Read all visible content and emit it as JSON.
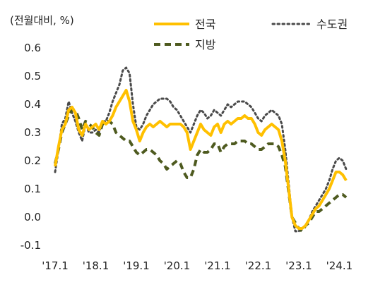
{
  "chart_data": {
    "type": "line",
    "unit_label": "(전월대비, %)",
    "ylim": [
      -0.1,
      0.6
    ],
    "y_ticks": [
      "0.6",
      "0.5",
      "0.4",
      "0.3",
      "0.2",
      "0.1",
      "0.0",
      "-0.1"
    ],
    "x_range": [
      "2017-01",
      "2024-03"
    ],
    "x_ticks": [
      {
        "label": "'17.1",
        "month": "2017-01"
      },
      {
        "label": "'18.1",
        "month": "2018-01"
      },
      {
        "label": "'19.1",
        "month": "2019-01"
      },
      {
        "label": "'20.1",
        "month": "2020-01"
      },
      {
        "label": "'21.1",
        "month": "2021-01"
      },
      {
        "label": "'22.1",
        "month": "2022-01"
      },
      {
        "label": "'23.1",
        "month": "2023-01"
      },
      {
        "label": "'24.1",
        "month": "2024-01"
      }
    ],
    "grid": false,
    "legend_position": "top-right",
    "series": [
      {
        "name": "전국",
        "color": "#FFC000",
        "style": "solid",
        "points": [
          [
            "2017-01",
            0.18
          ],
          [
            "2017-02",
            0.25
          ],
          [
            "2017-03",
            0.31
          ],
          [
            "2017-04",
            0.33
          ],
          [
            "2017-05",
            0.38
          ],
          [
            "2017-06",
            0.39
          ],
          [
            "2017-07",
            0.37
          ],
          [
            "2017-08",
            0.31
          ],
          [
            "2017-09",
            0.29
          ],
          [
            "2017-10",
            0.33
          ],
          [
            "2017-11",
            0.31
          ],
          [
            "2017-12",
            0.32
          ],
          [
            "2018-01",
            0.33
          ],
          [
            "2018-02",
            0.31
          ],
          [
            "2018-03",
            0.34
          ],
          [
            "2018-04",
            0.33
          ],
          [
            "2018-05",
            0.34
          ],
          [
            "2018-06",
            0.36
          ],
          [
            "2018-07",
            0.39
          ],
          [
            "2018-08",
            0.41
          ],
          [
            "2018-09",
            0.43
          ],
          [
            "2018-10",
            0.45
          ],
          [
            "2018-11",
            0.41
          ],
          [
            "2018-12",
            0.34
          ],
          [
            "2019-01",
            0.31
          ],
          [
            "2019-02",
            0.27
          ],
          [
            "2019-03",
            0.3
          ],
          [
            "2019-04",
            0.32
          ],
          [
            "2019-05",
            0.33
          ],
          [
            "2019-06",
            0.32
          ],
          [
            "2019-07",
            0.33
          ],
          [
            "2019-08",
            0.34
          ],
          [
            "2019-09",
            0.33
          ],
          [
            "2019-10",
            0.32
          ],
          [
            "2019-11",
            0.33
          ],
          [
            "2019-12",
            0.33
          ],
          [
            "2020-01",
            0.33
          ],
          [
            "2020-02",
            0.33
          ],
          [
            "2020-03",
            0.32
          ],
          [
            "2020-04",
            0.3
          ],
          [
            "2020-05",
            0.24
          ],
          [
            "2020-06",
            0.27
          ],
          [
            "2020-07",
            0.3
          ],
          [
            "2020-08",
            0.33
          ],
          [
            "2020-09",
            0.31
          ],
          [
            "2020-10",
            0.3
          ],
          [
            "2020-11",
            0.29
          ],
          [
            "2020-12",
            0.32
          ],
          [
            "2021-01",
            0.33
          ],
          [
            "2021-02",
            0.3
          ],
          [
            "2021-03",
            0.33
          ],
          [
            "2021-04",
            0.34
          ],
          [
            "2021-05",
            0.33
          ],
          [
            "2021-06",
            0.34
          ],
          [
            "2021-07",
            0.35
          ],
          [
            "2021-08",
            0.35
          ],
          [
            "2021-09",
            0.36
          ],
          [
            "2021-10",
            0.35
          ],
          [
            "2021-11",
            0.35
          ],
          [
            "2021-12",
            0.33
          ],
          [
            "2022-01",
            0.3
          ],
          [
            "2022-02",
            0.29
          ],
          [
            "2022-03",
            0.31
          ],
          [
            "2022-04",
            0.32
          ],
          [
            "2022-05",
            0.33
          ],
          [
            "2022-06",
            0.32
          ],
          [
            "2022-07",
            0.31
          ],
          [
            "2022-08",
            0.27
          ],
          [
            "2022-09",
            0.2
          ],
          [
            "2022-10",
            0.1
          ],
          [
            "2022-11",
            0.0
          ],
          [
            "2022-12",
            -0.03
          ],
          [
            "2023-01",
            -0.04
          ],
          [
            "2023-02",
            -0.04
          ],
          [
            "2023-03",
            -0.03
          ],
          [
            "2023-04",
            -0.01
          ],
          [
            "2023-05",
            0.01
          ],
          [
            "2023-06",
            0.03
          ],
          [
            "2023-07",
            0.04
          ],
          [
            "2023-08",
            0.06
          ],
          [
            "2023-09",
            0.08
          ],
          [
            "2023-10",
            0.1
          ],
          [
            "2023-11",
            0.13
          ],
          [
            "2023-12",
            0.16
          ],
          [
            "2024-01",
            0.16
          ],
          [
            "2024-02",
            0.15
          ],
          [
            "2024-03",
            0.13
          ]
        ]
      },
      {
        "name": "수도권",
        "color": "#4a4a4a",
        "style": "dotted",
        "points": [
          [
            "2017-01",
            0.16
          ],
          [
            "2017-02",
            0.24
          ],
          [
            "2017-03",
            0.33
          ],
          [
            "2017-04",
            0.35
          ],
          [
            "2017-05",
            0.41
          ],
          [
            "2017-06",
            0.37
          ],
          [
            "2017-07",
            0.34
          ],
          [
            "2017-08",
            0.3
          ],
          [
            "2017-09",
            0.27
          ],
          [
            "2017-10",
            0.33
          ],
          [
            "2017-11",
            0.3
          ],
          [
            "2017-12",
            0.3
          ],
          [
            "2018-01",
            0.31
          ],
          [
            "2018-02",
            0.3
          ],
          [
            "2018-03",
            0.34
          ],
          [
            "2018-04",
            0.34
          ],
          [
            "2018-05",
            0.37
          ],
          [
            "2018-06",
            0.41
          ],
          [
            "2018-07",
            0.44
          ],
          [
            "2018-08",
            0.47
          ],
          [
            "2018-09",
            0.52
          ],
          [
            "2018-10",
            0.53
          ],
          [
            "2018-11",
            0.51
          ],
          [
            "2018-12",
            0.4
          ],
          [
            "2019-01",
            0.32
          ],
          [
            "2019-02",
            0.31
          ],
          [
            "2019-03",
            0.33
          ],
          [
            "2019-04",
            0.36
          ],
          [
            "2019-05",
            0.38
          ],
          [
            "2019-06",
            0.4
          ],
          [
            "2019-07",
            0.41
          ],
          [
            "2019-08",
            0.42
          ],
          [
            "2019-09",
            0.42
          ],
          [
            "2019-10",
            0.42
          ],
          [
            "2019-11",
            0.41
          ],
          [
            "2019-12",
            0.39
          ],
          [
            "2020-01",
            0.38
          ],
          [
            "2020-02",
            0.36
          ],
          [
            "2020-03",
            0.34
          ],
          [
            "2020-04",
            0.32
          ],
          [
            "2020-05",
            0.3
          ],
          [
            "2020-06",
            0.33
          ],
          [
            "2020-07",
            0.36
          ],
          [
            "2020-08",
            0.38
          ],
          [
            "2020-09",
            0.37
          ],
          [
            "2020-10",
            0.35
          ],
          [
            "2020-11",
            0.36
          ],
          [
            "2020-12",
            0.38
          ],
          [
            "2021-01",
            0.37
          ],
          [
            "2021-02",
            0.36
          ],
          [
            "2021-03",
            0.38
          ],
          [
            "2021-04",
            0.4
          ],
          [
            "2021-05",
            0.39
          ],
          [
            "2021-06",
            0.4
          ],
          [
            "2021-07",
            0.41
          ],
          [
            "2021-08",
            0.41
          ],
          [
            "2021-09",
            0.41
          ],
          [
            "2021-10",
            0.4
          ],
          [
            "2021-11",
            0.39
          ],
          [
            "2021-12",
            0.37
          ],
          [
            "2022-01",
            0.35
          ],
          [
            "2022-02",
            0.34
          ],
          [
            "2022-03",
            0.36
          ],
          [
            "2022-04",
            0.37
          ],
          [
            "2022-05",
            0.38
          ],
          [
            "2022-06",
            0.37
          ],
          [
            "2022-07",
            0.36
          ],
          [
            "2022-08",
            0.33
          ],
          [
            "2022-09",
            0.24
          ],
          [
            "2022-10",
            0.12
          ],
          [
            "2022-11",
            0.0
          ],
          [
            "2022-12",
            -0.05
          ],
          [
            "2023-01",
            -0.05
          ],
          [
            "2023-02",
            -0.04
          ],
          [
            "2023-03",
            -0.03
          ],
          [
            "2023-04",
            -0.01
          ],
          [
            "2023-05",
            0.02
          ],
          [
            "2023-06",
            0.04
          ],
          [
            "2023-07",
            0.06
          ],
          [
            "2023-08",
            0.08
          ],
          [
            "2023-09",
            0.1
          ],
          [
            "2023-10",
            0.13
          ],
          [
            "2023-11",
            0.17
          ],
          [
            "2023-12",
            0.2
          ],
          [
            "2024-01",
            0.21
          ],
          [
            "2024-02",
            0.2
          ],
          [
            "2024-03",
            0.17
          ]
        ]
      },
      {
        "name": "지방",
        "color": "#4e5a1f",
        "style": "dashed",
        "points": [
          [
            "2017-01",
            0.19
          ],
          [
            "2017-02",
            0.24
          ],
          [
            "2017-03",
            0.3
          ],
          [
            "2017-04",
            0.33
          ],
          [
            "2017-05",
            0.36
          ],
          [
            "2017-06",
            0.38
          ],
          [
            "2017-07",
            0.38
          ],
          [
            "2017-08",
            0.35
          ],
          [
            "2017-09",
            0.31
          ],
          [
            "2017-10",
            0.34
          ],
          [
            "2017-11",
            0.33
          ],
          [
            "2017-12",
            0.32
          ],
          [
            "2018-01",
            0.3
          ],
          [
            "2018-02",
            0.29
          ],
          [
            "2018-03",
            0.33
          ],
          [
            "2018-04",
            0.34
          ],
          [
            "2018-05",
            0.34
          ],
          [
            "2018-06",
            0.33
          ],
          [
            "2018-07",
            0.3
          ],
          [
            "2018-08",
            0.29
          ],
          [
            "2018-09",
            0.28
          ],
          [
            "2018-10",
            0.27
          ],
          [
            "2018-11",
            0.27
          ],
          [
            "2018-12",
            0.25
          ],
          [
            "2019-01",
            0.23
          ],
          [
            "2019-02",
            0.22
          ],
          [
            "2019-03",
            0.23
          ],
          [
            "2019-04",
            0.24
          ],
          [
            "2019-05",
            0.24
          ],
          [
            "2019-06",
            0.23
          ],
          [
            "2019-07",
            0.22
          ],
          [
            "2019-08",
            0.2
          ],
          [
            "2019-09",
            0.19
          ],
          [
            "2019-10",
            0.17
          ],
          [
            "2019-11",
            0.18
          ],
          [
            "2019-12",
            0.19
          ],
          [
            "2020-01",
            0.2
          ],
          [
            "2020-02",
            0.19
          ],
          [
            "2020-03",
            0.16
          ],
          [
            "2020-04",
            0.14
          ],
          [
            "2020-05",
            0.14
          ],
          [
            "2020-06",
            0.17
          ],
          [
            "2020-07",
            0.22
          ],
          [
            "2020-08",
            0.24
          ],
          [
            "2020-09",
            0.23
          ],
          [
            "2020-10",
            0.23
          ],
          [
            "2020-11",
            0.24
          ],
          [
            "2020-12",
            0.26
          ],
          [
            "2021-01",
            0.26
          ],
          [
            "2021-02",
            0.23
          ],
          [
            "2021-03",
            0.25
          ],
          [
            "2021-04",
            0.26
          ],
          [
            "2021-05",
            0.26
          ],
          [
            "2021-06",
            0.26
          ],
          [
            "2021-07",
            0.27
          ],
          [
            "2021-08",
            0.27
          ],
          [
            "2021-09",
            0.27
          ],
          [
            "2021-10",
            0.26
          ],
          [
            "2021-11",
            0.26
          ],
          [
            "2021-12",
            0.25
          ],
          [
            "2022-01",
            0.24
          ],
          [
            "2022-02",
            0.24
          ],
          [
            "2022-03",
            0.25
          ],
          [
            "2022-04",
            0.26
          ],
          [
            "2022-05",
            0.26
          ],
          [
            "2022-06",
            0.26
          ],
          [
            "2022-07",
            0.25
          ],
          [
            "2022-08",
            0.22
          ],
          [
            "2022-09",
            0.18
          ],
          [
            "2022-10",
            0.09
          ],
          [
            "2022-11",
            0.0
          ],
          [
            "2022-12",
            -0.02
          ],
          [
            "2023-01",
            -0.04
          ],
          [
            "2023-02",
            -0.05
          ],
          [
            "2023-03",
            -0.03
          ],
          [
            "2023-04",
            -0.02
          ],
          [
            "2023-05",
            0.0
          ],
          [
            "2023-06",
            0.02
          ],
          [
            "2023-07",
            0.02
          ],
          [
            "2023-08",
            0.03
          ],
          [
            "2023-09",
            0.04
          ],
          [
            "2023-10",
            0.05
          ],
          [
            "2023-11",
            0.06
          ],
          [
            "2023-12",
            0.07
          ],
          [
            "2024-01",
            0.08
          ],
          [
            "2024-02",
            0.08
          ],
          [
            "2024-03",
            0.07
          ]
        ]
      }
    ]
  }
}
